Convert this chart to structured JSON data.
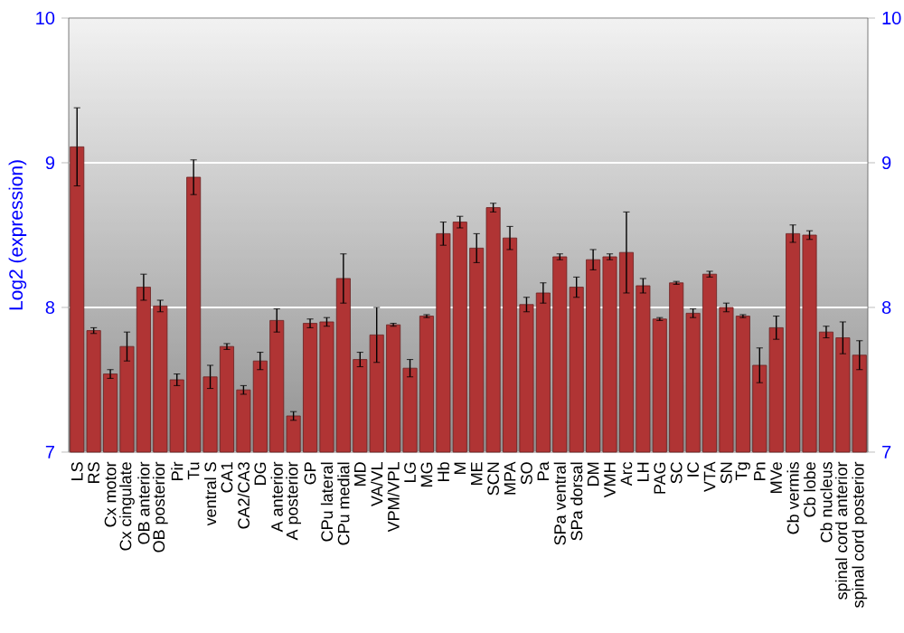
{
  "chart_data": {
    "type": "bar",
    "ylabel": "Log2 (expression)",
    "categories": [
      "LS",
      "RS",
      "Cx motor",
      "Cx cingulate",
      "OB anterior",
      "OB posterior",
      "Pir",
      "Tu",
      "ventral S",
      "CA1",
      "CA2/CA3",
      "DG",
      "A anterior",
      "A posterior",
      "GP",
      "CPu lateral",
      "CPu medial",
      "MD",
      "VA/VL",
      "VPM/VPL",
      "LG",
      "MG",
      "Hb",
      "M",
      "ME",
      "SCN",
      "MPA",
      "SO",
      "Pa",
      "SPa ventral",
      "SPa dorsal",
      "DM",
      "VMH",
      "Arc",
      "LH",
      "PAG",
      "SC",
      "IC",
      "VTA",
      "SN",
      "Tg",
      "Pn",
      "MVe",
      "Cb vermis",
      "Cb lobe",
      "Cb nucleus",
      "spinal cord anterior",
      "spinal cord posterior"
    ],
    "values": [
      9.11,
      7.84,
      7.54,
      7.73,
      8.14,
      8.01,
      7.5,
      8.9,
      7.52,
      7.73,
      7.43,
      7.63,
      7.91,
      7.25,
      7.89,
      7.9,
      8.2,
      7.64,
      7.81,
      7.88,
      7.58,
      7.94,
      8.51,
      8.59,
      8.41,
      8.69,
      8.48,
      8.02,
      8.1,
      8.35,
      8.14,
      8.33,
      8.35,
      8.38,
      8.15,
      7.92,
      8.17,
      7.96,
      8.23,
      8.0,
      7.94,
      7.6,
      7.86,
      8.51,
      8.5,
      7.83,
      7.79,
      7.67
    ],
    "errors": [
      0.27,
      0.02,
      0.03,
      0.1,
      0.09,
      0.04,
      0.04,
      0.12,
      0.08,
      0.02,
      0.03,
      0.06,
      0.08,
      0.03,
      0.03,
      0.03,
      0.17,
      0.05,
      0.19,
      0.01,
      0.06,
      0.01,
      0.08,
      0.04,
      0.1,
      0.03,
      0.08,
      0.05,
      0.07,
      0.02,
      0.07,
      0.07,
      0.02,
      0.28,
      0.05,
      0.01,
      0.01,
      0.03,
      0.02,
      0.03,
      0.01,
      0.12,
      0.08,
      0.06,
      0.03,
      0.04,
      0.11,
      0.1
    ],
    "color": "#b03434",
    "ylim": [
      7,
      10
    ],
    "yticks": [
      7,
      8,
      9,
      10
    ],
    "y2lim": [
      7,
      10
    ],
    "y2ticks": [
      7,
      8,
      9,
      10
    ],
    "grid": "y"
  }
}
